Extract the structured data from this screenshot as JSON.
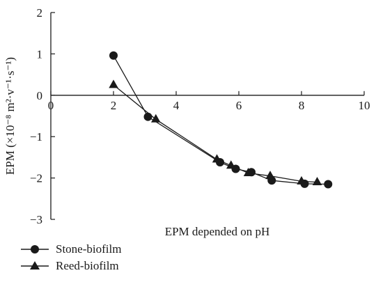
{
  "chart_data": {
    "type": "line",
    "xlabel": "EPM depended on pH",
    "ylabel": "EPM (×10⁻⁸ m²·v⁻¹·s⁻¹)",
    "xlim": [
      0,
      10
    ],
    "ylim": [
      -3,
      2
    ],
    "xticks": [
      "0",
      "2",
      "4",
      "6",
      "8",
      "10"
    ],
    "yticks": [
      "2",
      "1",
      "0",
      "−1",
      "−2",
      "−3"
    ],
    "xtick_values": [
      0,
      2,
      4,
      6,
      8,
      10
    ],
    "ytick_values": [
      2,
      1,
      0,
      -1,
      -2,
      -3
    ],
    "grid": false,
    "legend_position": "bottom-left",
    "series": [
      {
        "name": "Stone-biofilm",
        "marker": "circle",
        "x": [
          2.0,
          3.1,
          5.4,
          5.9,
          6.4,
          7.05,
          8.1,
          8.85
        ],
        "y": [
          0.96,
          -0.52,
          -1.62,
          -1.78,
          -1.86,
          -2.06,
          -2.14,
          -2.15
        ]
      },
      {
        "name": "Reed-biofilm",
        "marker": "triangle",
        "x": [
          2.0,
          3.35,
          5.3,
          5.75,
          6.3,
          7.0,
          8.0,
          8.5
        ],
        "y": [
          0.25,
          -0.58,
          -1.55,
          -1.7,
          -1.88,
          -1.95,
          -2.08,
          -2.1
        ]
      }
    ]
  }
}
